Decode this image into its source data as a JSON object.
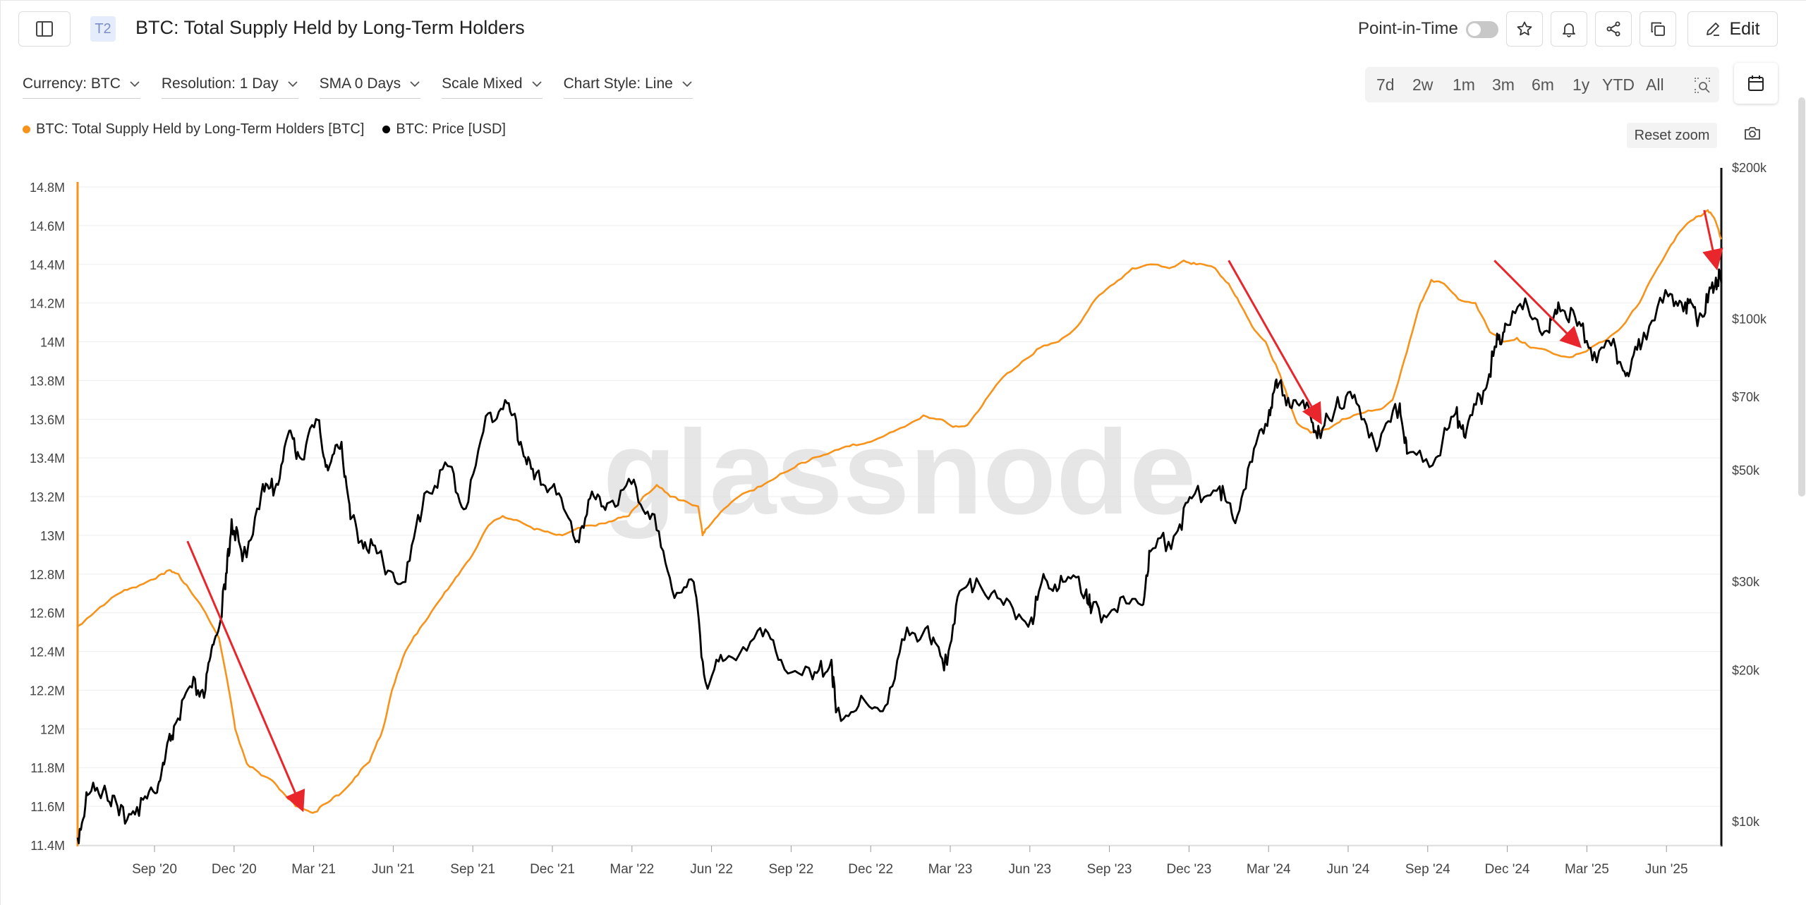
{
  "header": {
    "tier_badge": "T2",
    "title": "BTC: Total Supply Held by Long-Term Holders",
    "point_in_time_label": "Point-in-Time",
    "point_in_time_enabled": false,
    "edit_label": "Edit",
    "icons": [
      "sidebar-icon",
      "star-icon",
      "bell-icon",
      "share-icon",
      "copy-icon",
      "pencil-icon"
    ]
  },
  "controls": {
    "currency": "Currency: BTC",
    "resolution": "Resolution: 1 Day",
    "sma": "SMA 0 Days",
    "scale": "Scale Mixed",
    "chart_style": "Chart Style: Line"
  },
  "ranges": [
    "7d",
    "2w",
    "1m",
    "3m",
    "6m",
    "1y",
    "YTD",
    "All"
  ],
  "reset_zoom": "Reset zoom",
  "colors": {
    "supply": "#f7931a",
    "price": "#000000",
    "arrow": "#e8262b",
    "grid": "#eeeeee"
  },
  "chart_data": {
    "type": "line",
    "title": "BTC: Total Supply Held by Long-Term Holders",
    "watermark": "glassnode",
    "x_ticks": [
      "Sep '20",
      "Dec '20",
      "Mar '21",
      "Jun '21",
      "Sep '21",
      "Dec '21",
      "Mar '22",
      "Jun '22",
      "Sep '22",
      "Dec '22",
      "Mar '23",
      "Jun '23",
      "Sep '23",
      "Dec '23",
      "Mar '24",
      "Jun '24",
      "Sep '24",
      "Dec '24",
      "Mar '25",
      "Jun '25"
    ],
    "y_left": {
      "label": "BTC",
      "ylim": [
        11.4,
        14.8
      ],
      "ticks": [
        "11.4M",
        "11.6M",
        "11.8M",
        "12M",
        "12.2M",
        "12.4M",
        "12.6M",
        "12.8M",
        "13M",
        "13.2M",
        "13.4M",
        "13.6M",
        "13.8M",
        "14M",
        "14.2M",
        "14.4M",
        "14.6M",
        "14.8M"
      ]
    },
    "y_right": {
      "label": "USD",
      "scale": "log",
      "ticks": [
        {
          "label": "$10k",
          "value": 10000
        },
        {
          "label": "$20k",
          "value": 20000
        },
        {
          "label": "$30k",
          "value": 30000
        },
        {
          "label": "$50k",
          "value": 50000
        },
        {
          "label": "$70k",
          "value": 70000
        },
        {
          "label": "$100k",
          "value": 100000
        },
        {
          "label": "$200k",
          "value": 200000
        }
      ]
    },
    "series": [
      {
        "name": "BTC: Total Supply Held by Long-Term Holders [BTC]",
        "axis": "left",
        "unit": "M BTC",
        "points": [
          [
            "2020-07-21",
            12.53
          ],
          [
            "2020-08-15",
            12.63
          ],
          [
            "2020-09-05",
            12.7
          ],
          [
            "2020-09-20",
            12.73
          ],
          [
            "2020-10-10",
            12.77
          ],
          [
            "2020-10-25",
            12.8
          ],
          [
            "2020-11-01",
            12.82
          ],
          [
            "2020-11-10",
            12.8
          ],
          [
            "2020-11-25",
            12.7
          ],
          [
            "2020-12-10",
            12.6
          ],
          [
            "2020-12-25",
            12.47
          ],
          [
            "2021-01-05",
            12.2
          ],
          [
            "2021-01-12",
            12.0
          ],
          [
            "2021-01-25",
            11.82
          ],
          [
            "2021-02-10",
            11.76
          ],
          [
            "2021-02-25",
            11.72
          ],
          [
            "2021-03-10",
            11.65
          ],
          [
            "2021-03-20",
            11.6
          ],
          [
            "2021-04-01",
            11.58
          ],
          [
            "2021-04-10",
            11.57
          ],
          [
            "2021-04-25",
            11.62
          ],
          [
            "2021-05-10",
            11.67
          ],
          [
            "2021-05-25",
            11.75
          ],
          [
            "2021-06-10",
            11.83
          ],
          [
            "2021-06-25",
            12.0
          ],
          [
            "2021-07-05",
            12.2
          ],
          [
            "2021-07-20",
            12.4
          ],
          [
            "2021-08-05",
            12.52
          ],
          [
            "2021-08-20",
            12.62
          ],
          [
            "2021-09-05",
            12.72
          ],
          [
            "2021-09-20",
            12.82
          ],
          [
            "2021-10-05",
            12.92
          ],
          [
            "2021-10-20",
            13.05
          ],
          [
            "2021-11-05",
            13.1
          ],
          [
            "2021-11-20",
            13.08
          ],
          [
            "2021-12-10",
            13.03
          ],
          [
            "2021-12-25",
            13.02
          ],
          [
            "2022-01-10",
            13.0
          ],
          [
            "2022-02-01",
            13.04
          ],
          [
            "2022-02-20",
            13.06
          ],
          [
            "2022-03-10",
            13.08
          ],
          [
            "2022-03-25",
            13.1
          ],
          [
            "2022-04-10",
            13.2
          ],
          [
            "2022-04-25",
            13.26
          ],
          [
            "2022-05-10",
            13.2
          ],
          [
            "2022-05-25",
            13.18
          ],
          [
            "2022-06-10",
            13.15
          ],
          [
            "2022-06-15",
            13.0
          ],
          [
            "2022-06-18",
            13.03
          ],
          [
            "2022-07-05",
            13.12
          ],
          [
            "2022-07-25",
            13.2
          ],
          [
            "2022-08-15",
            13.25
          ],
          [
            "2022-09-05",
            13.3
          ],
          [
            "2022-09-25",
            13.35
          ],
          [
            "2022-10-15",
            13.4
          ],
          [
            "2022-11-05",
            13.43
          ],
          [
            "2022-11-25",
            13.46
          ],
          [
            "2022-12-15",
            13.48
          ],
          [
            "2023-01-05",
            13.52
          ],
          [
            "2023-01-25",
            13.56
          ],
          [
            "2023-02-15",
            13.62
          ],
          [
            "2023-03-05",
            13.6
          ],
          [
            "2023-03-20",
            13.56
          ],
          [
            "2023-04-05",
            13.57
          ],
          [
            "2023-04-25",
            13.7
          ],
          [
            "2023-05-15",
            13.82
          ],
          [
            "2023-06-05",
            13.9
          ],
          [
            "2023-06-25",
            13.97
          ],
          [
            "2023-07-15",
            14.0
          ],
          [
            "2023-08-05",
            14.08
          ],
          [
            "2023-08-25",
            14.22
          ],
          [
            "2023-09-15",
            14.3
          ],
          [
            "2023-10-05",
            14.38
          ],
          [
            "2023-10-25",
            14.4
          ],
          [
            "2023-11-15",
            14.38
          ],
          [
            "2023-12-01",
            14.42
          ],
          [
            "2023-12-15",
            14.4
          ],
          [
            "2024-01-05",
            14.38
          ],
          [
            "2024-01-20",
            14.3
          ],
          [
            "2024-02-01",
            14.2
          ],
          [
            "2024-02-15",
            14.08
          ],
          [
            "2024-03-01",
            14.0
          ],
          [
            "2024-03-15",
            13.85
          ],
          [
            "2024-03-25",
            13.72
          ],
          [
            "2024-04-05",
            13.58
          ],
          [
            "2024-04-20",
            13.53
          ],
          [
            "2024-05-10",
            13.55
          ],
          [
            "2024-05-25",
            13.6
          ],
          [
            "2024-06-15",
            13.63
          ],
          [
            "2024-07-05",
            13.65
          ],
          [
            "2024-07-20",
            13.7
          ],
          [
            "2024-08-05",
            13.95
          ],
          [
            "2024-08-20",
            14.2
          ],
          [
            "2024-09-01",
            14.32
          ],
          [
            "2024-09-15",
            14.3
          ],
          [
            "2024-10-01",
            14.22
          ],
          [
            "2024-10-20",
            14.2
          ],
          [
            "2024-11-05",
            14.05
          ],
          [
            "2024-11-20",
            14.0
          ],
          [
            "2024-12-05",
            14.02
          ],
          [
            "2024-12-20",
            13.97
          ],
          [
            "2025-01-10",
            13.95
          ],
          [
            "2025-02-01",
            13.92
          ],
          [
            "2025-02-20",
            13.95
          ],
          [
            "2025-03-10",
            14.0
          ],
          [
            "2025-04-01",
            14.08
          ],
          [
            "2025-04-20",
            14.2
          ],
          [
            "2025-05-10",
            14.38
          ],
          [
            "2025-05-25",
            14.5
          ],
          [
            "2025-06-10",
            14.6
          ],
          [
            "2025-06-25",
            14.65
          ],
          [
            "2025-07-05",
            14.68
          ],
          [
            "2025-07-12",
            14.64
          ],
          [
            "2025-07-20",
            14.53
          ]
        ]
      },
      {
        "name": "BTC: Price [USD]",
        "axis": "right",
        "unit": "USD",
        "points": [
          [
            "2020-07-21",
            9300
          ],
          [
            "2020-08-01",
            11300
          ],
          [
            "2020-08-20",
            11800
          ],
          [
            "2020-09-05",
            10300
          ],
          [
            "2020-09-25",
            10700
          ],
          [
            "2020-10-15",
            11400
          ],
          [
            "2020-10-25",
            13000
          ],
          [
            "2020-11-05",
            15500
          ],
          [
            "2020-11-25",
            18500
          ],
          [
            "2020-12-10",
            18300
          ],
          [
            "2020-12-20",
            23000
          ],
          [
            "2021-01-01",
            29000
          ],
          [
            "2021-01-08",
            40000
          ],
          [
            "2021-01-20",
            33000
          ],
          [
            "2021-02-10",
            45000
          ],
          [
            "2021-02-25",
            46000
          ],
          [
            "2021-03-13",
            60000
          ],
          [
            "2021-03-25",
            53000
          ],
          [
            "2021-04-14",
            63000
          ],
          [
            "2021-04-25",
            50000
          ],
          [
            "2021-05-10",
            57000
          ],
          [
            "2021-05-20",
            40000
          ],
          [
            "2021-06-05",
            36000
          ],
          [
            "2021-06-25",
            33000
          ],
          [
            "2021-07-20",
            30000
          ],
          [
            "2021-08-10",
            45000
          ],
          [
            "2021-09-05",
            51000
          ],
          [
            "2021-09-25",
            42000
          ],
          [
            "2021-10-20",
            65000
          ],
          [
            "2021-11-10",
            68000
          ],
          [
            "2021-11-25",
            57000
          ],
          [
            "2021-12-10",
            48000
          ],
          [
            "2022-01-01",
            47000
          ],
          [
            "2022-01-25",
            36000
          ],
          [
            "2022-02-10",
            44000
          ],
          [
            "2022-03-01",
            43000
          ],
          [
            "2022-03-28",
            47000
          ],
          [
            "2022-04-20",
            41000
          ],
          [
            "2022-05-12",
            29000
          ],
          [
            "2022-06-05",
            30000
          ],
          [
            "2022-06-18",
            19000
          ],
          [
            "2022-07-10",
            21000
          ],
          [
            "2022-08-15",
            24000
          ],
          [
            "2022-09-10",
            21000
          ],
          [
            "2022-10-15",
            19200
          ],
          [
            "2022-11-05",
            21000
          ],
          [
            "2022-11-10",
            16500
          ],
          [
            "2022-12-05",
            17000
          ],
          [
            "2023-01-01",
            16600
          ],
          [
            "2023-01-25",
            23000
          ],
          [
            "2023-02-20",
            24500
          ],
          [
            "2023-03-10",
            20000
          ],
          [
            "2023-03-25",
            28000
          ],
          [
            "2023-04-15",
            30500
          ],
          [
            "2023-05-15",
            27000
          ],
          [
            "2023-06-15",
            25500
          ],
          [
            "2023-06-30",
            30500
          ],
          [
            "2023-07-20",
            30000
          ],
          [
            "2023-08-15",
            29000
          ],
          [
            "2023-08-20",
            26000
          ],
          [
            "2023-09-15",
            26500
          ],
          [
            "2023-10-15",
            27000
          ],
          [
            "2023-10-25",
            34500
          ],
          [
            "2023-11-20",
            37000
          ],
          [
            "2023-12-10",
            44000
          ],
          [
            "2024-01-10",
            46500
          ],
          [
            "2024-01-25",
            40000
          ],
          [
            "2024-02-15",
            52000
          ],
          [
            "2024-03-05",
            66000
          ],
          [
            "2024-03-14",
            73000
          ],
          [
            "2024-04-01",
            69000
          ],
          [
            "2024-04-20",
            64000
          ],
          [
            "2024-05-01",
            58000
          ],
          [
            "2024-05-20",
            70000
          ],
          [
            "2024-06-10",
            68000
          ],
          [
            "2024-07-05",
            56000
          ],
          [
            "2024-07-28",
            68000
          ],
          [
            "2024-08-05",
            54000
          ],
          [
            "2024-09-06",
            53000
          ],
          [
            "2024-09-28",
            65000
          ],
          [
            "2024-10-10",
            60000
          ],
          [
            "2024-10-29",
            72000
          ],
          [
            "2024-11-12",
            88000
          ],
          [
            "2024-11-22",
            98000
          ],
          [
            "2024-12-17",
            106000
          ],
          [
            "2025-01-10",
            94000
          ],
          [
            "2025-01-20",
            108000
          ],
          [
            "2025-02-10",
            97000
          ],
          [
            "2025-03-01",
            86000
          ],
          [
            "2025-03-25",
            87000
          ],
          [
            "2025-04-08",
            77000
          ],
          [
            "2025-04-25",
            94000
          ],
          [
            "2025-05-22",
            111000
          ],
          [
            "2025-06-10",
            108000
          ],
          [
            "2025-06-22",
            101000
          ],
          [
            "2025-07-05",
            108000
          ],
          [
            "2025-07-14",
            121000
          ],
          [
            "2025-07-20",
            118000
          ]
        ]
      }
    ],
    "annotations": [
      {
        "type": "arrow",
        "from": [
          "2020-11-20",
          12.97
        ],
        "to": [
          "2021-03-26",
          11.6
        ]
      },
      {
        "type": "arrow",
        "from": [
          "2024-01-20",
          14.42
        ],
        "to": [
          "2024-04-29",
          13.6
        ]
      },
      {
        "type": "arrow",
        "from": [
          "2024-11-10",
          14.42
        ],
        "to": [
          "2025-02-10",
          13.99
        ]
      },
      {
        "type": "arrow",
        "from": [
          "2025-07-01",
          14.68
        ],
        "to": [
          "2025-07-14",
          14.4
        ]
      }
    ]
  }
}
